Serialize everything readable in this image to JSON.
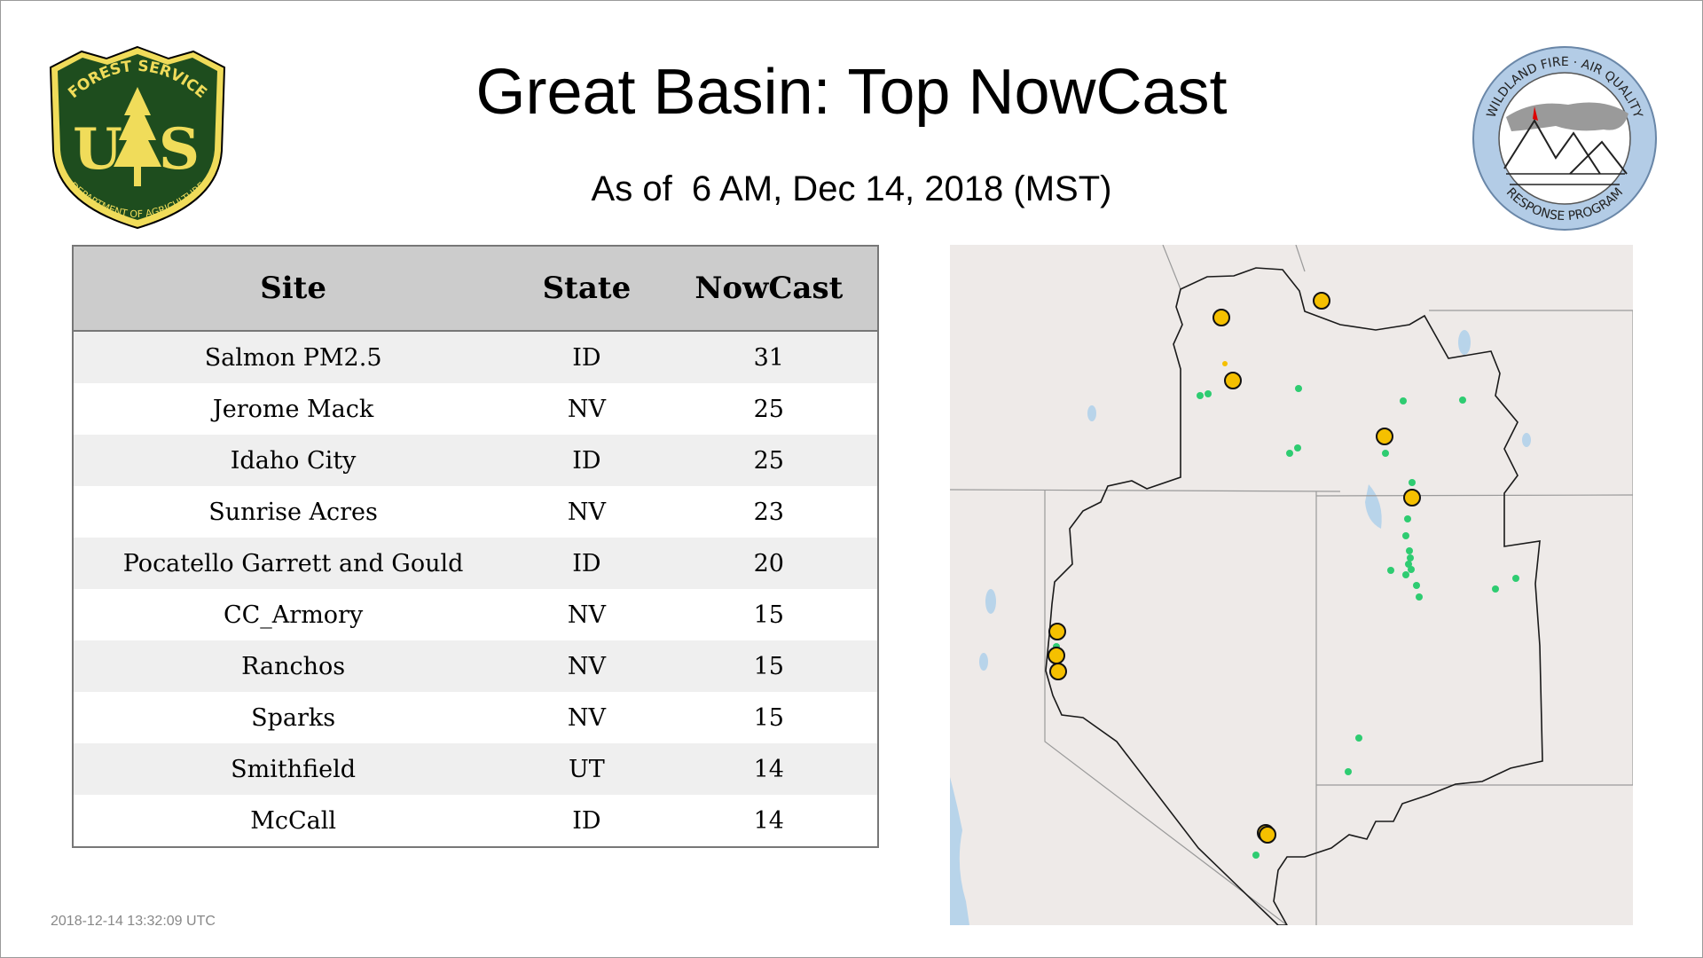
{
  "header": {
    "title": "Great Basin: Top NowCast",
    "subtitle": "As of  6 AM, Dec 14, 2018 (MST)"
  },
  "logos": {
    "left": {
      "top_text": "FOREST SERVICE",
      "letters": "U S",
      "bottom_text": "DEPARTMENT OF AGRICULTURE"
    },
    "right": {
      "top_text": "WILDLAND FIRE · AIR QUALITY",
      "bottom_text": "RESPONSE PROGRAM"
    }
  },
  "table": {
    "headers": {
      "site": "Site",
      "state": "State",
      "nowcast": "NowCast"
    },
    "rows": [
      {
        "site": "Salmon PM2.5",
        "state": "ID",
        "nowcast": "31"
      },
      {
        "site": "Jerome Mack",
        "state": "NV",
        "nowcast": "25"
      },
      {
        "site": "Idaho City",
        "state": "ID",
        "nowcast": "25"
      },
      {
        "site": "Sunrise Acres",
        "state": "NV",
        "nowcast": "23"
      },
      {
        "site": "Pocatello Garrett and Gould",
        "state": "ID",
        "nowcast": "20"
      },
      {
        "site": "CC_Armory",
        "state": "NV",
        "nowcast": "15"
      },
      {
        "site": "Ranchos",
        "state": "NV",
        "nowcast": "15"
      },
      {
        "site": "Sparks",
        "state": "NV",
        "nowcast": "15"
      },
      {
        "site": "Smithfield",
        "state": "UT",
        "nowcast": "14"
      },
      {
        "site": "McCall",
        "state": "ID",
        "nowcast": "14"
      }
    ]
  },
  "footer": {
    "timestamp": "2018-12-14 13:32:09 UTC"
  },
  "colors": {
    "moderate": "#f5c000",
    "good": "#2ecc71",
    "usfs_green": "#1e4d1e",
    "usfs_gold": "#f0dc5a",
    "map_land": "#eeeae8",
    "map_water": "#b8d4ea"
  }
}
